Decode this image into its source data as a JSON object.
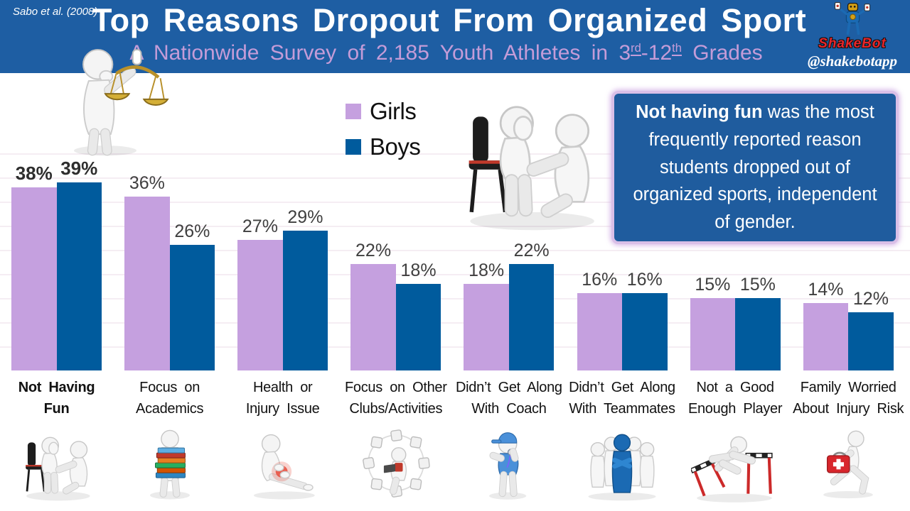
{
  "source_citation": "Sabo et al. (2008)",
  "header": {
    "title": "Top Reasons Dropout From Organized Sport",
    "subtitle": {
      "prefix": "A Nationwide Survey of 2,185 Youth Athletes in ",
      "grade_from": "3",
      "grade_from_ordinal": "rd",
      "separator": "-",
      "grade_to": "12",
      "grade_to_ordinal": "th",
      "suffix": " Grades"
    },
    "brand": {
      "wordmark": "ShakeBot",
      "handle": "@shakebotapp"
    }
  },
  "legend": {
    "items": [
      {
        "label": "Girls",
        "color": "#C5A0DF"
      },
      {
        "label": "Boys",
        "color": "#005B9D"
      }
    ]
  },
  "callout": {
    "emphasis": "Not having fun",
    "text": " was the most frequently reported reason students dropped out of organized sports, independent of gender."
  },
  "chart_data": {
    "type": "bar",
    "title": "Top Reasons Dropout From Organized Sport",
    "subtitle": "A Nationwide Survey of 2,185 Youth Athletes in 3rd-12th Grades",
    "categories": [
      "Not Having Fun",
      "Focus on Academics",
      "Health or Injury Issue",
      "Focus on Other Clubs/Activities",
      "Didn’t Get Along With Coach",
      "Didn’t Get Along With Teammates",
      "Not a Good Enough Player",
      "Family Worried About Injury Risk"
    ],
    "category_label_lines": [
      [
        "Not Having",
        "Fun"
      ],
      [
        "Focus on",
        "Academics"
      ],
      [
        "Health or",
        "Injury Issue"
      ],
      [
        "Focus on Other",
        "Clubs/Activities"
      ],
      [
        "Didn’t Get Along",
        "With Coach"
      ],
      [
        "Didn’t Get Along",
        "With Teammates"
      ],
      [
        "Not a Good",
        "Enough Player"
      ],
      [
        "Family Worried",
        "About Injury Risk"
      ]
    ],
    "series": [
      {
        "name": "Girls",
        "color": "#C5A0DF",
        "values": [
          38,
          36,
          27,
          22,
          18,
          16,
          15,
          14
        ]
      },
      {
        "name": "Boys",
        "color": "#005B9D",
        "values": [
          39,
          26,
          29,
          18,
          22,
          16,
          15,
          12
        ]
      }
    ],
    "value_label_format": "{v}%",
    "emphasized_category_index": 0,
    "ylim": [
      0,
      45
    ],
    "gridline_step_pct": 5,
    "grid": true,
    "legend_position": "top-center",
    "value_labels_shown": true,
    "axis_shown": false
  },
  "colors": {
    "header_bg": "#1E5EA3",
    "girls_bar": "#C5A0DF",
    "boys_bar": "#005B9D",
    "subtitle_text": "#C49CD8",
    "callout_bg": "#1F5C9E",
    "callout_border": "#D9BFE7",
    "gridline": "#F5EDF3",
    "value_label_text": "#3F3F3F",
    "brand_red": "#E8252A"
  },
  "cliparts": {
    "top_left": "figure-with-balance-scales",
    "center": "consoling-figures",
    "top_right": "shakebot-robot-mascot",
    "bottom_row": [
      "consoling-figures",
      "figure-carrying-books",
      "figure-holding-injured-knee",
      "figure-in-circle-of-activities",
      "coach-with-whistle",
      "blue-figure-among-teammates",
      "figure-tripping-over-hurdles",
      "figure-running-with-first-aid-kit"
    ]
  }
}
